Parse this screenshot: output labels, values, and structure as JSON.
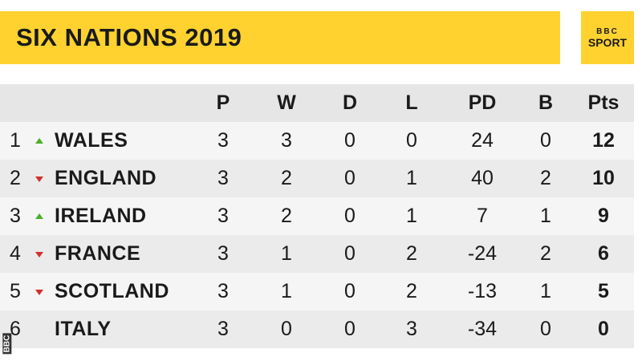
{
  "header": {
    "title": "SIX NATIONS 2019",
    "logo": [
      "BBC",
      "SPORT"
    ]
  },
  "table": {
    "columns": [
      "P",
      "W",
      "D",
      "L",
      "PD",
      "B",
      "Pts"
    ],
    "rows": [
      {
        "position": 1,
        "movement": "up",
        "team": "WALES",
        "stats": [
          3,
          3,
          0,
          0,
          24,
          0,
          12
        ]
      },
      {
        "position": 2,
        "movement": "down",
        "team": "ENGLAND",
        "stats": [
          3,
          2,
          0,
          1,
          40,
          2,
          10
        ]
      },
      {
        "position": 3,
        "movement": "up",
        "team": "IRELAND",
        "stats": [
          3,
          2,
          0,
          1,
          7,
          1,
          9
        ]
      },
      {
        "position": 4,
        "movement": "down",
        "team": "FRANCE",
        "stats": [
          3,
          1,
          0,
          2,
          -24,
          2,
          6
        ]
      },
      {
        "position": 5,
        "movement": "down",
        "team": "SCOTLAND",
        "stats": [
          3,
          1,
          0,
          2,
          -13,
          1,
          5
        ]
      },
      {
        "position": 6,
        "movement": "none",
        "team": "ITALY",
        "stats": [
          3,
          0,
          0,
          3,
          -34,
          0,
          0
        ]
      }
    ]
  },
  "watermark": "BBC"
}
